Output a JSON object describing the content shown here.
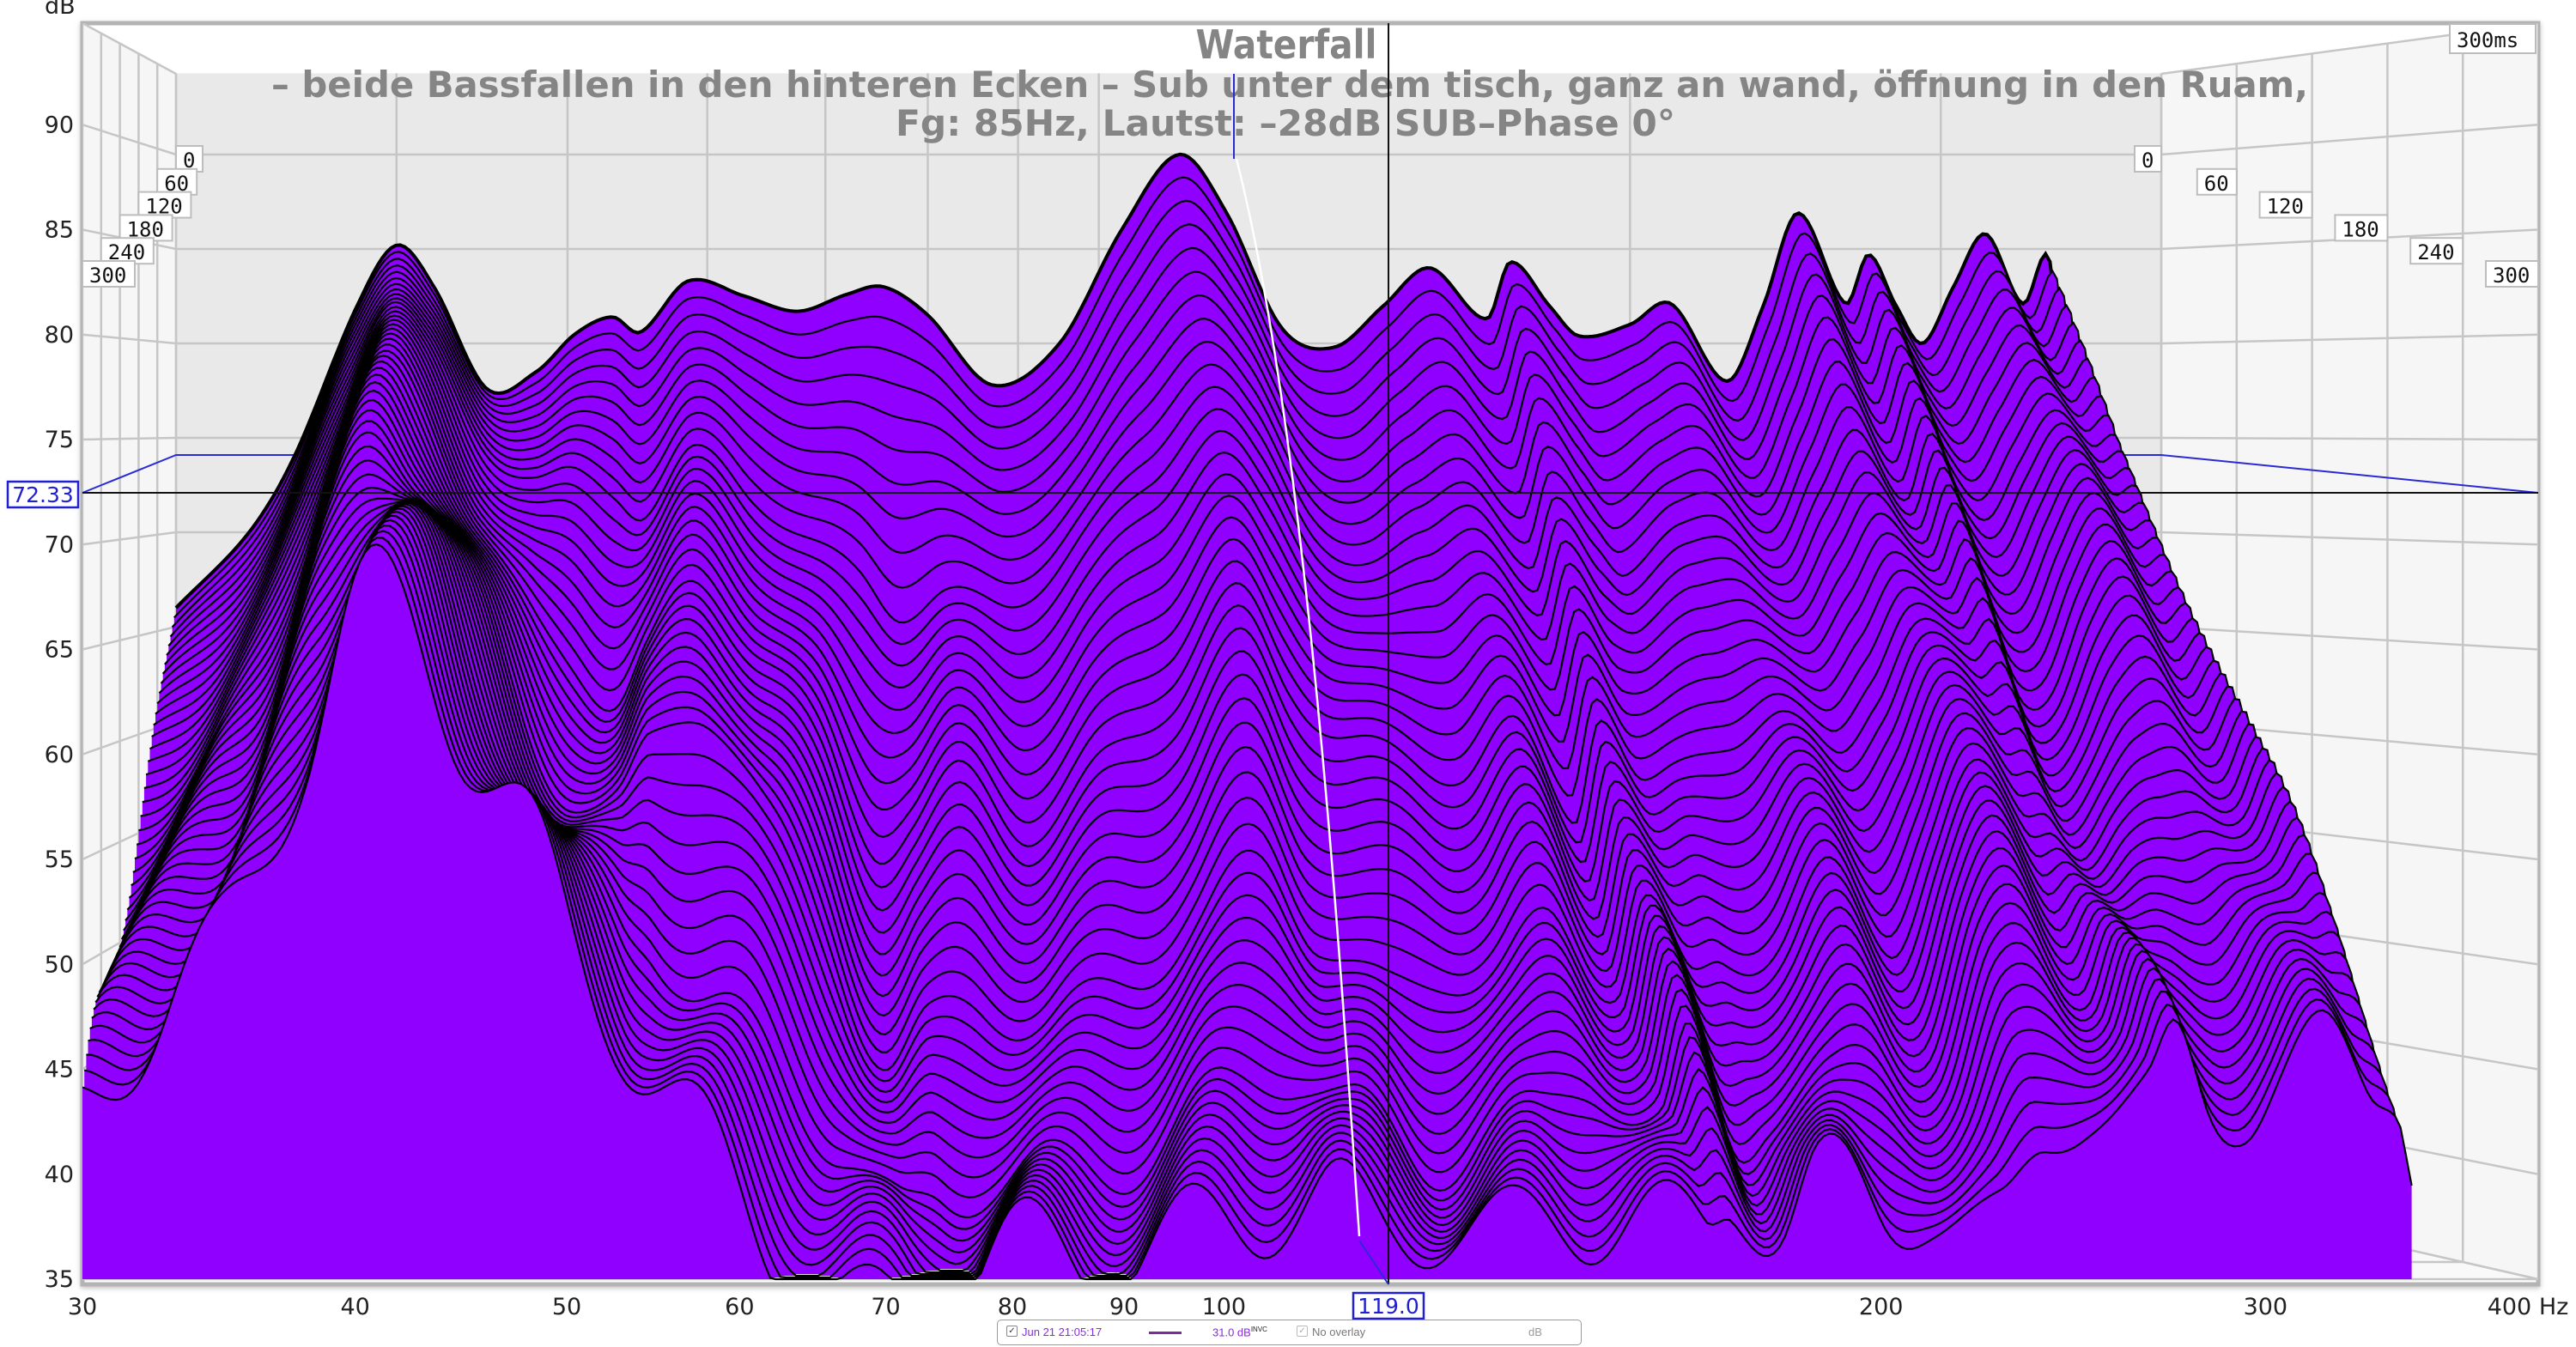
{
  "chart_data": {
    "type": "area",
    "title": "Waterfall",
    "subtitle": [
      "– beide Bassfallen in den hinteren Ecken – Sub unter dem tisch, ganz an wand, öffnung in den Ruam,",
      "Fg: 85Hz, Lautst: –28dB SUB–Phase  0°"
    ],
    "ylabel": "dB",
    "xlabel": "Hz",
    "xscale": "log",
    "xlim": [
      30,
      400
    ],
    "ylim": [
      35,
      94.5
    ],
    "zlim_ms": [
      0,
      300
    ],
    "x_ticks": [
      "30",
      "40",
      "50",
      "60",
      "70",
      "80",
      "90",
      "100",
      "200",
      "300",
      "400 Hz"
    ],
    "x_tick_values": [
      30,
      40,
      50,
      60,
      70,
      80,
      90,
      100,
      200,
      300,
      400
    ],
    "y_ticks": [
      "35",
      "40",
      "45",
      "50",
      "55",
      "60",
      "65",
      "70",
      "75",
      "80",
      "85",
      "90"
    ],
    "y_tick_values": [
      35,
      40,
      45,
      50,
      55,
      60,
      65,
      70,
      75,
      80,
      85,
      90
    ],
    "z_ticks": [
      "0",
      "60",
      "120",
      "180",
      "240",
      "300"
    ],
    "z_tick_values": [
      0,
      60,
      120,
      180,
      240,
      300
    ],
    "z_end_label": "300ms",
    "fill_color": "#8f00ff",
    "grid": true,
    "x": [
      30,
      33,
      35,
      38,
      40,
      42,
      45,
      48,
      50.5,
      53,
      55,
      58.5,
      63,
      67.5,
      72,
      75.5,
      80,
      87,
      95,
      103,
      111,
      118,
      127,
      136,
      145,
      154,
      166,
      171,
      180,
      187,
      200,
      211,
      227,
      238,
      249,
      265,
      273,
      283,
      293,
      305,
      318,
      334,
      345,
      350
    ],
    "series": [
      {
        "name": "0 ms",
        "time_ms": 0,
        "values": [
          66,
          70,
          74,
          82,
          85.2,
          83,
          77.6,
          78.5,
          80.5,
          81.4,
          80.6,
          83.3,
          82.5,
          81.7,
          82.6,
          83,
          81.5,
          77.8,
          80,
          86,
          90,
          87,
          80.8,
          79.8,
          82,
          84,
          81.3,
          84.3,
          82,
          80.4,
          81,
          82.1,
          78,
          82,
          86.9,
          82.1,
          84.7,
          82,
          80,
          83,
          85.8,
          82.1,
          84.7,
          80
        ]
      },
      {
        "name": "60 ms",
        "time_ms": 60,
        "values": [
          61,
          65,
          69,
          78,
          82,
          80,
          75,
          73,
          73,
          72,
          71,
          74,
          72,
          70,
          68,
          66,
          67,
          66,
          70,
          74,
          78,
          75,
          70,
          68,
          70,
          72,
          68,
          72,
          70,
          68,
          70,
          71,
          68,
          72,
          76,
          72,
          75,
          72,
          71,
          74,
          76,
          74,
          75,
          72
        ]
      },
      {
        "name": "120 ms",
        "time_ms": 120,
        "values": [
          56,
          60,
          64,
          74,
          78,
          77,
          71,
          66,
          64,
          62,
          64,
          67,
          64,
          60,
          55,
          56,
          58,
          55,
          58,
          62,
          66,
          63,
          60,
          58,
          58,
          60,
          56,
          62,
          58,
          58,
          60,
          61,
          58,
          62,
          66,
          64,
          66,
          63,
          63,
          66,
          68,
          66,
          67,
          64
        ]
      },
      {
        "name": "180 ms",
        "time_ms": 180,
        "values": [
          51,
          56,
          60,
          70,
          75,
          73,
          67,
          61,
          58,
          57,
          60,
          62,
          55,
          50,
          44,
          46,
          48,
          46,
          48,
          50,
          54,
          51,
          48,
          49,
          48,
          50,
          48,
          52,
          48,
          50,
          51,
          53,
          50,
          54,
          57,
          56,
          57,
          55,
          56,
          58,
          60,
          58,
          59,
          56
        ]
      },
      {
        "name": "240 ms",
        "time_ms": 240,
        "values": [
          46,
          52,
          56,
          66,
          71,
          70,
          63,
          58,
          54,
          52,
          52,
          48,
          44,
          40,
          36,
          38,
          40,
          40,
          41,
          42,
          44,
          42,
          41,
          42,
          42,
          44,
          40,
          44,
          41,
          43,
          44,
          46,
          44,
          48,
          50,
          48,
          50,
          48,
          49,
          51,
          53,
          51,
          52,
          49
        ]
      },
      {
        "name": "300 ms",
        "time_ms": 300,
        "values": [
          42,
          48,
          52,
          62,
          68,
          67,
          60,
          55,
          50,
          47,
          45,
          42,
          37,
          33,
          33,
          34,
          36,
          37,
          38,
          38,
          38,
          36,
          38,
          38,
          39,
          39,
          36,
          38,
          37,
          39,
          38,
          40,
          38,
          42,
          44,
          42,
          44,
          42,
          43,
          45,
          46,
          45,
          46,
          43
        ]
      }
    ]
  },
  "cursor": {
    "frequency_label": "119.0",
    "frequency_hz": 119,
    "level_label": "72.33",
    "level_db": 72.33
  },
  "legend": {
    "measurement_name": "Jun 21 21:05:17",
    "measurement_checked": true,
    "measurement_color": "#7b2d9b",
    "value": "31.0 dB",
    "value_suffix": "INVC",
    "overlay_label": "No overlay",
    "overlay_checked": true,
    "unit": "dB"
  }
}
